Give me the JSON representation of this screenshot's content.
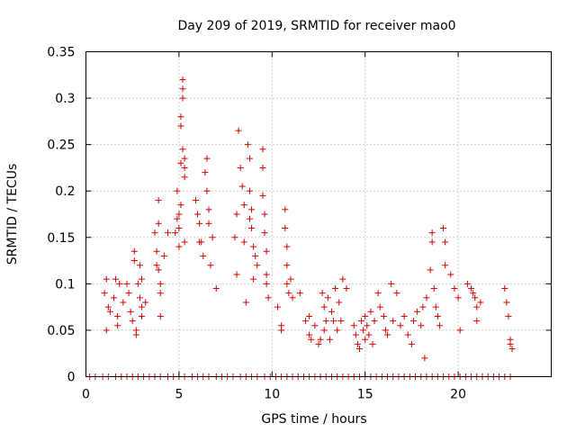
{
  "chart_data": {
    "type": "scatter",
    "title": "Day 209 of 2019, SRMTID for receiver mao0",
    "xlabel": "GPS time / hours",
    "ylabel": "SRMTID / TECUs",
    "xlim": [
      0,
      25
    ],
    "ylim": [
      0,
      0.35
    ],
    "xticks": [
      0,
      5,
      10,
      15,
      20
    ],
    "xtick_labels": [
      "0",
      "5",
      "10",
      "15",
      "20"
    ],
    "yticks": [
      0,
      0.05,
      0.1,
      0.15,
      0.2,
      0.25,
      0.3,
      0.35
    ],
    "ytick_labels": [
      "0",
      "0.05",
      "0.1",
      "0.15",
      "0.2",
      "0.25",
      "0.3",
      "0.35"
    ],
    "grid": true,
    "marker": "+",
    "series": [
      {
        "name": "SRMTID",
        "color": "#d40000",
        "points": [
          [
            1.0,
            0.09
          ],
          [
            1.1,
            0.105
          ],
          [
            1.2,
            0.075
          ],
          [
            1.1,
            0.05
          ],
          [
            1.3,
            0.07
          ],
          [
            1.5,
            0.085
          ],
          [
            1.6,
            0.105
          ],
          [
            1.7,
            0.065
          ],
          [
            1.8,
            0.1
          ],
          [
            1.7,
            0.055
          ],
          [
            2.0,
            0.08
          ],
          [
            2.2,
            0.1
          ],
          [
            2.3,
            0.09
          ],
          [
            2.4,
            0.07
          ],
          [
            2.5,
            0.06
          ],
          [
            2.6,
            0.135
          ],
          [
            2.6,
            0.125
          ],
          [
            2.7,
            0.05
          ],
          [
            2.7,
            0.045
          ],
          [
            2.8,
            0.1
          ],
          [
            2.9,
            0.12
          ],
          [
            2.9,
            0.085
          ],
          [
            3.0,
            0.105
          ],
          [
            3.0,
            0.075
          ],
          [
            3.0,
            0.065
          ],
          [
            3.2,
            0.08
          ],
          [
            3.7,
            0.155
          ],
          [
            3.8,
            0.135
          ],
          [
            3.8,
            0.12
          ],
          [
            3.9,
            0.19
          ],
          [
            3.9,
            0.165
          ],
          [
            3.9,
            0.115
          ],
          [
            4.0,
            0.1
          ],
          [
            4.0,
            0.065
          ],
          [
            4.0,
            0.09
          ],
          [
            4.2,
            0.13
          ],
          [
            4.4,
            0.155
          ],
          [
            4.8,
            0.155
          ],
          [
            4.9,
            0.2
          ],
          [
            4.9,
            0.17
          ],
          [
            5.0,
            0.175
          ],
          [
            5.0,
            0.16
          ],
          [
            5.0,
            0.14
          ],
          [
            5.1,
            0.23
          ],
          [
            5.1,
            0.185
          ],
          [
            5.1,
            0.27
          ],
          [
            5.1,
            0.28
          ],
          [
            5.2,
            0.3
          ],
          [
            5.2,
            0.31
          ],
          [
            5.2,
            0.32
          ],
          [
            5.2,
            0.245
          ],
          [
            5.3,
            0.235
          ],
          [
            5.3,
            0.215
          ],
          [
            5.3,
            0.145
          ],
          [
            5.3,
            0.225
          ],
          [
            5.9,
            0.19
          ],
          [
            6.0,
            0.175
          ],
          [
            6.1,
            0.165
          ],
          [
            6.1,
            0.145
          ],
          [
            6.2,
            0.145
          ],
          [
            6.3,
            0.13
          ],
          [
            6.4,
            0.22
          ],
          [
            6.5,
            0.235
          ],
          [
            6.5,
            0.2
          ],
          [
            6.6,
            0.165
          ],
          [
            6.6,
            0.18
          ],
          [
            6.7,
            0.12
          ],
          [
            6.8,
            0.15
          ],
          [
            7.0,
            0.095
          ],
          [
            8.0,
            0.15
          ],
          [
            8.1,
            0.175
          ],
          [
            8.1,
            0.11
          ],
          [
            8.2,
            0.265
          ],
          [
            8.3,
            0.225
          ],
          [
            8.4,
            0.205
          ],
          [
            8.5,
            0.185
          ],
          [
            8.5,
            0.145
          ],
          [
            8.6,
            0.08
          ],
          [
            8.7,
            0.25
          ],
          [
            8.8,
            0.235
          ],
          [
            8.8,
            0.2
          ],
          [
            8.8,
            0.17
          ],
          [
            8.9,
            0.18
          ],
          [
            8.9,
            0.16
          ],
          [
            9.0,
            0.14
          ],
          [
            9.0,
            0.105
          ],
          [
            9.1,
            0.13
          ],
          [
            9.2,
            0.12
          ],
          [
            9.5,
            0.245
          ],
          [
            9.5,
            0.225
          ],
          [
            9.5,
            0.195
          ],
          [
            9.6,
            0.175
          ],
          [
            9.6,
            0.155
          ],
          [
            9.7,
            0.135
          ],
          [
            9.7,
            0.11
          ],
          [
            9.7,
            0.1
          ],
          [
            9.8,
            0.085
          ],
          [
            10.3,
            0.075
          ],
          [
            10.5,
            0.055
          ],
          [
            10.5,
            0.05
          ],
          [
            10.7,
            0.18
          ],
          [
            10.7,
            0.16
          ],
          [
            10.8,
            0.14
          ],
          [
            10.8,
            0.12
          ],
          [
            10.8,
            0.1
          ],
          [
            10.9,
            0.09
          ],
          [
            11.0,
            0.105
          ],
          [
            11.1,
            0.085
          ],
          [
            11.5,
            0.09
          ],
          [
            11.8,
            0.06
          ],
          [
            12.0,
            0.045
          ],
          [
            12.0,
            0.065
          ],
          [
            12.1,
            0.04
          ],
          [
            12.3,
            0.055
          ],
          [
            12.5,
            0.035
          ],
          [
            12.6,
            0.04
          ],
          [
            12.7,
            0.09
          ],
          [
            12.8,
            0.075
          ],
          [
            12.8,
            0.05
          ],
          [
            12.9,
            0.06
          ],
          [
            13.0,
            0.085
          ],
          [
            13.1,
            0.04
          ],
          [
            13.2,
            0.07
          ],
          [
            13.3,
            0.06
          ],
          [
            13.4,
            0.095
          ],
          [
            13.5,
            0.05
          ],
          [
            13.6,
            0.08
          ],
          [
            13.7,
            0.06
          ],
          [
            13.8,
            0.105
          ],
          [
            14.0,
            0.095
          ],
          [
            14.4,
            0.055
          ],
          [
            14.5,
            0.045
          ],
          [
            14.6,
            0.035
          ],
          [
            14.7,
            0.03
          ],
          [
            14.8,
            0.06
          ],
          [
            14.9,
            0.05
          ],
          [
            15.0,
            0.065
          ],
          [
            15.0,
            0.04
          ],
          [
            15.1,
            0.055
          ],
          [
            15.2,
            0.045
          ],
          [
            15.3,
            0.07
          ],
          [
            15.4,
            0.035
          ],
          [
            15.5,
            0.06
          ],
          [
            15.7,
            0.09
          ],
          [
            15.8,
            0.075
          ],
          [
            16.0,
            0.065
          ],
          [
            16.1,
            0.05
          ],
          [
            16.2,
            0.045
          ],
          [
            16.4,
            0.1
          ],
          [
            16.5,
            0.06
          ],
          [
            16.7,
            0.09
          ],
          [
            16.9,
            0.055
          ],
          [
            17.1,
            0.065
          ],
          [
            17.3,
            0.045
          ],
          [
            17.5,
            0.035
          ],
          [
            17.6,
            0.06
          ],
          [
            17.8,
            0.07
          ],
          [
            18.0,
            0.055
          ],
          [
            18.1,
            0.075
          ],
          [
            18.2,
            0.02
          ],
          [
            18.3,
            0.085
          ],
          [
            18.5,
            0.115
          ],
          [
            18.6,
            0.155
          ],
          [
            18.6,
            0.145
          ],
          [
            18.7,
            0.095
          ],
          [
            18.8,
            0.075
          ],
          [
            18.9,
            0.065
          ],
          [
            19.0,
            0.055
          ],
          [
            19.2,
            0.16
          ],
          [
            19.3,
            0.145
          ],
          [
            19.3,
            0.12
          ],
          [
            19.6,
            0.11
          ],
          [
            19.8,
            0.095
          ],
          [
            20.0,
            0.085
          ],
          [
            20.1,
            0.05
          ],
          [
            20.5,
            0.1
          ],
          [
            20.7,
            0.095
          ],
          [
            20.8,
            0.09
          ],
          [
            20.9,
            0.085
          ],
          [
            21.0,
            0.075
          ],
          [
            21.0,
            0.06
          ],
          [
            21.2,
            0.08
          ],
          [
            22.5,
            0.095
          ],
          [
            22.6,
            0.08
          ],
          [
            22.7,
            0.065
          ],
          [
            22.8,
            0.04
          ],
          [
            22.8,
            0.035
          ],
          [
            22.9,
            0.03
          ]
        ]
      }
    ],
    "zero_points_x": [
      0.2,
      0.5,
      0.9,
      1.2,
      1.6,
      1.9,
      2.2,
      2.5,
      2.8,
      3.1,
      3.4,
      3.7,
      4.0,
      4.4,
      4.7,
      5.0,
      5.3,
      5.7,
      6.0,
      6.3,
      6.6,
      7.0,
      7.3,
      7.6,
      7.9,
      8.3,
      8.6,
      8.9,
      9.2,
      9.6,
      9.9,
      10.2,
      10.5,
      10.8,
      11.1,
      11.4,
      11.7,
      12.0,
      12.3,
      12.6,
      12.9,
      13.2,
      13.5,
      13.8,
      14.1,
      14.4,
      14.7,
      15.0,
      15.3,
      15.6,
      15.9,
      16.2,
      16.5,
      16.8,
      17.1,
      17.4,
      17.7,
      18.0,
      18.3,
      18.6,
      18.9,
      19.2,
      19.5,
      19.8,
      20.1,
      20.4,
      20.7,
      21.0,
      21.3,
      21.6,
      21.9,
      22.2,
      22.5,
      22.8
    ]
  }
}
